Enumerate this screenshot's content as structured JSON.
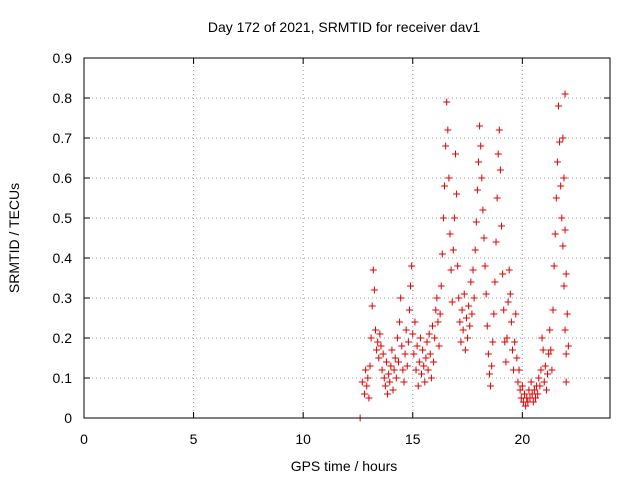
{
  "chart_data": {
    "type": "scatter",
    "title": "Day 172 of 2021, SRMTID for receiver dav1",
    "xlabel": "GPS time / hours",
    "ylabel": "SRMTID / TECUs",
    "xlim": [
      0,
      24
    ],
    "ylim": [
      0,
      0.9
    ],
    "xticks": [
      "0",
      "5",
      "10",
      "15",
      "20"
    ],
    "yticks": [
      "0",
      "0.1",
      "0.2",
      "0.3",
      "0.4",
      "0.5",
      "0.6",
      "0.7",
      "0.8",
      "0.9"
    ],
    "grid": true,
    "marker": "plus",
    "series": [
      {
        "name": "dav1",
        "color": "#e00000",
        "points": [
          [
            12.6,
            0.0
          ],
          [
            12.7,
            0.09
          ],
          [
            12.8,
            0.06
          ],
          [
            12.85,
            0.12
          ],
          [
            12.9,
            0.08
          ],
          [
            12.95,
            0.1
          ],
          [
            13.0,
            0.05
          ],
          [
            13.05,
            0.13
          ],
          [
            13.1,
            0.2
          ],
          [
            13.15,
            0.28
          ],
          [
            13.2,
            0.37
          ],
          [
            13.25,
            0.32
          ],
          [
            13.3,
            0.22
          ],
          [
            13.35,
            0.17
          ],
          [
            13.4,
            0.19
          ],
          [
            13.45,
            0.15
          ],
          [
            13.5,
            0.21
          ],
          [
            13.55,
            0.18
          ],
          [
            13.6,
            0.12
          ],
          [
            13.65,
            0.16
          ],
          [
            13.7,
            0.1
          ],
          [
            13.75,
            0.08
          ],
          [
            13.8,
            0.14
          ],
          [
            13.85,
            0.06
          ],
          [
            13.9,
            0.11
          ],
          [
            13.95,
            0.09
          ],
          [
            14.0,
            0.13
          ],
          [
            14.05,
            0.17
          ],
          [
            14.1,
            0.07
          ],
          [
            14.15,
            0.12
          ],
          [
            14.2,
            0.15
          ],
          [
            14.25,
            0.1
          ],
          [
            14.3,
            0.2
          ],
          [
            14.35,
            0.14
          ],
          [
            14.4,
            0.24
          ],
          [
            14.45,
            0.3
          ],
          [
            14.5,
            0.18
          ],
          [
            14.55,
            0.12
          ],
          [
            14.6,
            0.09
          ],
          [
            14.65,
            0.16
          ],
          [
            14.7,
            0.22
          ],
          [
            14.75,
            0.13
          ],
          [
            14.8,
            0.19
          ],
          [
            14.85,
            0.27
          ],
          [
            14.9,
            0.33
          ],
          [
            14.95,
            0.38
          ],
          [
            15.0,
            0.21
          ],
          [
            15.05,
            0.16
          ],
          [
            15.1,
            0.24
          ],
          [
            15.15,
            0.12
          ],
          [
            15.2,
            0.18
          ],
          [
            15.25,
            0.08
          ],
          [
            15.3,
            0.14
          ],
          [
            15.35,
            0.2
          ],
          [
            15.4,
            0.11
          ],
          [
            15.45,
            0.17
          ],
          [
            15.5,
            0.13
          ],
          [
            15.55,
            0.09
          ],
          [
            15.6,
            0.15
          ],
          [
            15.65,
            0.19
          ],
          [
            15.7,
            0.12
          ],
          [
            15.75,
            0.21
          ],
          [
            15.8,
            0.16
          ],
          [
            15.85,
            0.1
          ],
          [
            15.9,
            0.23
          ],
          [
            15.95,
            0.14
          ],
          [
            16.0,
            0.2
          ],
          [
            16.05,
            0.27
          ],
          [
            16.1,
            0.3
          ],
          [
            16.15,
            0.24
          ],
          [
            16.2,
            0.18
          ],
          [
            16.25,
            0.26
          ],
          [
            16.3,
            0.33
          ],
          [
            16.35,
            0.41
          ],
          [
            16.4,
            0.5
          ],
          [
            16.45,
            0.58
          ],
          [
            16.5,
            0.68
          ],
          [
            16.55,
            0.79
          ],
          [
            16.6,
            0.72
          ],
          [
            16.65,
            0.6
          ],
          [
            16.7,
            0.46
          ],
          [
            16.75,
            0.37
          ],
          [
            16.8,
            0.29
          ],
          [
            16.85,
            0.42
          ],
          [
            16.9,
            0.5
          ],
          [
            16.95,
            0.66
          ],
          [
            17.0,
            0.56
          ],
          [
            17.05,
            0.38
          ],
          [
            17.1,
            0.3
          ],
          [
            17.15,
            0.24
          ],
          [
            17.2,
            0.19
          ],
          [
            17.25,
            0.27
          ],
          [
            17.3,
            0.22
          ],
          [
            17.35,
            0.31
          ],
          [
            17.4,
            0.17
          ],
          [
            17.45,
            0.25
          ],
          [
            17.5,
            0.2
          ],
          [
            17.55,
            0.28
          ],
          [
            17.6,
            0.23
          ],
          [
            17.65,
            0.34
          ],
          [
            17.7,
            0.26
          ],
          [
            17.75,
            0.37
          ],
          [
            17.8,
            0.3
          ],
          [
            17.85,
            0.42
          ],
          [
            17.9,
            0.49
          ],
          [
            17.95,
            0.57
          ],
          [
            18.0,
            0.64
          ],
          [
            18.05,
            0.73
          ],
          [
            18.1,
            0.68
          ],
          [
            18.15,
            0.6
          ],
          [
            18.2,
            0.52
          ],
          [
            18.25,
            0.45
          ],
          [
            18.3,
            0.38
          ],
          [
            18.35,
            0.31
          ],
          [
            18.4,
            0.23
          ],
          [
            18.45,
            0.16
          ],
          [
            18.5,
            0.11
          ],
          [
            18.55,
            0.08
          ],
          [
            18.6,
            0.13
          ],
          [
            18.65,
            0.19
          ],
          [
            18.7,
            0.26
          ],
          [
            18.75,
            0.34
          ],
          [
            18.8,
            0.44
          ],
          [
            18.85,
            0.55
          ],
          [
            18.9,
            0.66
          ],
          [
            18.95,
            0.72
          ],
          [
            19.0,
            0.62
          ],
          [
            19.05,
            0.48
          ],
          [
            19.1,
            0.36
          ],
          [
            19.15,
            0.27
          ],
          [
            19.2,
            0.19
          ],
          [
            19.25,
            0.14
          ],
          [
            19.3,
            0.2
          ],
          [
            19.35,
            0.29
          ],
          [
            19.4,
            0.37
          ],
          [
            19.45,
            0.31
          ],
          [
            19.5,
            0.24
          ],
          [
            19.55,
            0.17
          ],
          [
            19.6,
            0.12
          ],
          [
            19.65,
            0.19
          ],
          [
            19.7,
            0.26
          ],
          [
            19.75,
            0.15
          ],
          [
            19.8,
            0.09
          ],
          [
            19.85,
            0.12
          ],
          [
            19.9,
            0.07
          ],
          [
            19.95,
            0.05
          ],
          [
            20.0,
            0.08
          ],
          [
            20.05,
            0.04
          ],
          [
            20.1,
            0.06
          ],
          [
            20.15,
            0.03
          ],
          [
            20.2,
            0.05
          ],
          [
            20.25,
            0.04
          ],
          [
            20.3,
            0.07
          ],
          [
            20.35,
            0.05
          ],
          [
            20.4,
            0.09
          ],
          [
            20.45,
            0.06
          ],
          [
            20.5,
            0.04
          ],
          [
            20.55,
            0.07
          ],
          [
            20.6,
            0.05
          ],
          [
            20.65,
            0.08
          ],
          [
            20.7,
            0.06
          ],
          [
            20.75,
            0.1
          ],
          [
            20.8,
            0.08
          ],
          [
            20.85,
            0.12
          ],
          [
            20.9,
            0.2
          ],
          [
            20.95,
            0.17
          ],
          [
            21.0,
            0.09
          ],
          [
            21.05,
            0.13
          ],
          [
            21.1,
            0.07
          ],
          [
            21.15,
            0.11
          ],
          [
            21.2,
            0.16
          ],
          [
            21.25,
            0.22
          ],
          [
            21.3,
            0.17
          ],
          [
            21.35,
            0.12
          ],
          [
            21.4,
            0.27
          ],
          [
            21.45,
            0.38
          ],
          [
            21.5,
            0.46
          ],
          [
            21.55,
            0.55
          ],
          [
            21.6,
            0.64
          ],
          [
            21.65,
            0.78
          ],
          [
            21.7,
            0.69
          ],
          [
            21.75,
            0.58
          ],
          [
            21.8,
            0.5
          ],
          [
            21.85,
            0.43
          ],
          [
            21.9,
            0.33
          ],
          [
            21.95,
            0.22
          ],
          [
            22.0,
            0.16
          ],
          [
            21.85,
            0.7
          ],
          [
            21.9,
            0.6
          ],
          [
            21.95,
            0.47
          ],
          [
            22.0,
            0.36
          ],
          [
            22.05,
            0.26
          ],
          [
            22.1,
            0.18
          ],
          [
            21.95,
            0.81
          ],
          [
            22.0,
            0.09
          ]
        ]
      }
    ]
  }
}
